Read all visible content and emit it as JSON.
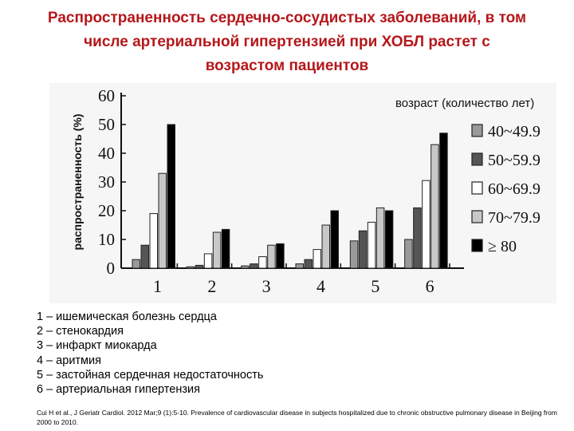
{
  "title_lines": [
    "Распространенность сердечно-сосудистых заболеваний, в том",
    "числе артериальной гипертензией при ХОБЛ растет с",
    "возрастом пациентов"
  ],
  "chart_data": {
    "type": "bar",
    "categories": [
      "1",
      "2",
      "3",
      "4",
      "5",
      "6"
    ],
    "ylabel": "распространенность (%)",
    "ylim": [
      0,
      60
    ],
    "yticks": [
      "0",
      "10",
      "20",
      "30",
      "40",
      "50",
      "60"
    ],
    "legend_title": "возраст (количество лет)",
    "legend_position": "right",
    "series": [
      {
        "name": "40~49.9",
        "color": "#9a9a9a",
        "values": [
          3,
          0.5,
          0.8,
          1.5,
          9.5,
          10
        ]
      },
      {
        "name": "50~59.9",
        "color": "#555555",
        "values": [
          8,
          1,
          1.5,
          3,
          13,
          21
        ]
      },
      {
        "name": "60~69.9",
        "color": "#ffffff",
        "values": [
          19,
          5,
          4,
          6.5,
          16,
          30.5
        ]
      },
      {
        "name": "70~79.9",
        "color": "#c8c8c8",
        "values": [
          33,
          12.5,
          8,
          15,
          21,
          43
        ]
      },
      {
        "name": "≥ 80",
        "color": "#000000",
        "values": [
          50,
          13.5,
          8.5,
          20,
          20,
          47
        ]
      }
    ]
  },
  "notes": [
    "1 – ишемическая болезнь сердца",
    "2 – стенокардия",
    "3 – инфаркт миокарда",
    "4 – аритмия",
    "5 – застойная сердечная недостаточность",
    "6 – артериальная гипертензия"
  ],
  "citation": "Cui H et al., J Geriatr Cardiol. 2012 Mar;9 (1):5-10. Prevalence of cardiovascular disease in subjects hospitalized due to chronic obstructive pulmonary disease in Beijing from 2000 to 2010."
}
